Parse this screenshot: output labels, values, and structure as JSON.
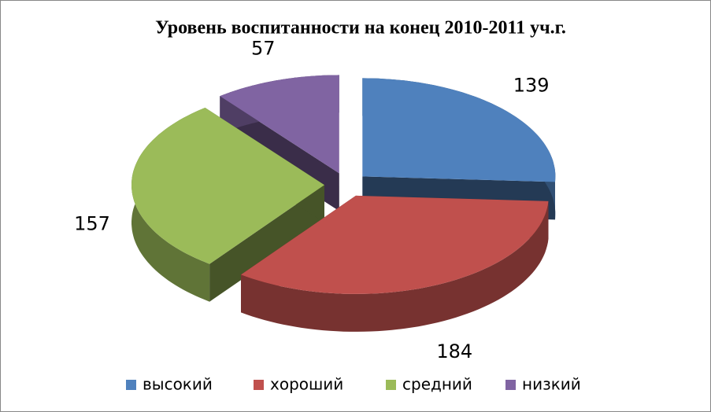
{
  "chart_data": {
    "type": "pie3d",
    "title": "Уровень воспитанности на конец 2010-2011 уч.г.",
    "categories": [
      "высокий",
      "хороший",
      "средний",
      "низкий"
    ],
    "values": [
      139,
      184,
      157,
      57
    ],
    "colors": [
      "#4f81bd",
      "#c0504d",
      "#9bbb59",
      "#8064a2"
    ],
    "legend": "bottom"
  }
}
